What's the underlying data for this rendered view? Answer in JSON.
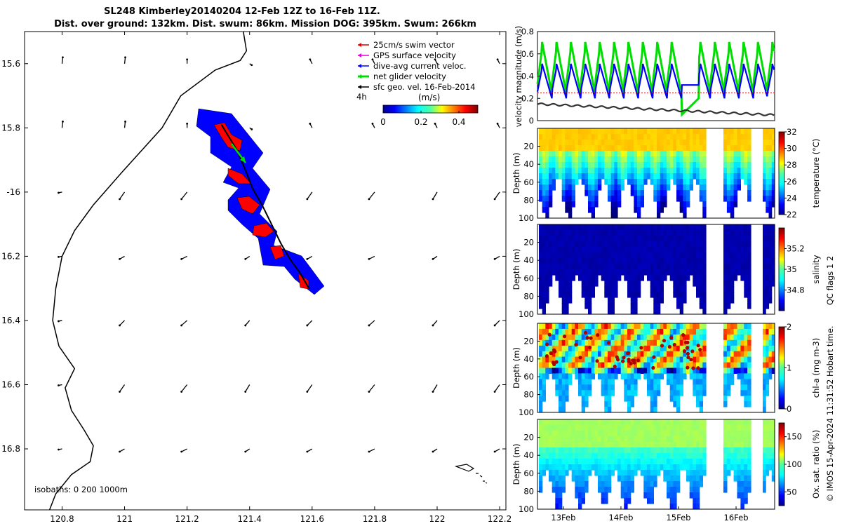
{
  "title": {
    "line1": "SL248 Kimberley20140204 12-Feb 12Z to 16-Feb 11Z.",
    "line2": "Dist. over ground: 132km. Dist. swum: 86km. Mission DOG: 395km. Swum: 266km"
  },
  "colors": {
    "swim": "#e00000",
    "gps": "#e000e0",
    "dive": "#0000ff",
    "net": "#00dd00",
    "sfc": "#000000",
    "track_fill": "#0000ff",
    "red_fill": "#ff0000"
  },
  "map": {
    "legend": [
      {
        "label": "25cm/s swim vector",
        "color": "#e00000"
      },
      {
        "label": "GPS surface velocity",
        "color": "#e000e0"
      },
      {
        "label": "dive-avg current veloc.",
        "color": "#0000ff"
      },
      {
        "label": "net glider velocity",
        "color": "#00dd00"
      },
      {
        "label": "sfc geo. vel. 16-Feb-2014",
        "color": "#000000"
      }
    ],
    "time_step_label": "4h",
    "colorbar": {
      "label": "(m/s)",
      "ticks": [
        "0",
        "0.2",
        "0.4"
      ],
      "range": [
        0,
        0.5
      ]
    },
    "isobaths_label": "isobaths: 0   200  1000m"
  },
  "chart_data": [
    {
      "type": "map",
      "title": "SL248 Kimberley20140204 12-Feb 12Z to 16-Feb 11Z.",
      "xlim": [
        120.68,
        122.22
      ],
      "ylim": [
        -16.99,
        -15.5
      ],
      "x_ticks": [
        120.8,
        121,
        121.2,
        121.4,
        121.6,
        121.8,
        122,
        122.2
      ],
      "x_tick_labels": [
        "120.8",
        "121",
        "121.2",
        "121.4",
        "121.6",
        "121.8",
        "122",
        "122.2"
      ],
      "y_ticks": [
        -15.6,
        -15.8,
        -16,
        -16.2,
        -16.4,
        -16.6,
        -16.8
      ],
      "y_tick_labels": [
        "15.6",
        "15.8",
        "-16",
        "16.2",
        "16.4",
        "16.6",
        "16.8"
      ],
      "coastline": [
        [
          121.38,
          -15.5
        ],
        [
          121.39,
          -15.56
        ],
        [
          121.37,
          -15.59
        ],
        [
          121.29,
          -15.62
        ],
        [
          121.18,
          -15.7
        ],
        [
          121.12,
          -15.8
        ],
        [
          120.99,
          -15.94
        ],
        [
          120.9,
          -16.04
        ],
        [
          120.84,
          -16.12
        ],
        [
          120.8,
          -16.2
        ],
        [
          120.78,
          -16.3
        ],
        [
          120.77,
          -16.4
        ],
        [
          120.79,
          -16.48
        ],
        [
          120.84,
          -16.55
        ],
        [
          120.81,
          -16.61
        ],
        [
          120.83,
          -16.68
        ],
        [
          120.87,
          -16.74
        ],
        [
          120.9,
          -16.79
        ],
        [
          120.89,
          -16.84
        ],
        [
          120.83,
          -16.88
        ],
        [
          120.78,
          -16.94
        ],
        [
          120.76,
          -16.99
        ]
      ],
      "track": [
        [
          121.31,
          -15.79
        ],
        [
          121.36,
          -15.87
        ],
        [
          121.39,
          -15.94
        ],
        [
          121.41,
          -15.99
        ],
        [
          121.44,
          -16.04
        ],
        [
          121.47,
          -16.1
        ],
        [
          121.5,
          -16.16
        ],
        [
          121.53,
          -16.21
        ],
        [
          121.56,
          -16.25
        ],
        [
          121.59,
          -16.3
        ]
      ],
      "sfc_vectors_u": -0.1,
      "sfc_vectors_v": -0.2
    },
    {
      "type": "line",
      "ylabel": "velocity magnitude (m/s)",
      "ylim": [
        0,
        0.8
      ],
      "y_ticks": [
        "0",
        "0.2",
        "0.4",
        "0.6",
        "0.8"
      ],
      "xlim_days": [
        12.55,
        16.67
      ],
      "series": [
        {
          "name": "net glider velocity",
          "color": "#00dd00",
          "base": 0.42,
          "amp": 0.3,
          "period": 0.25
        },
        {
          "name": "dive-avg current veloc.",
          "color": "#0000ff",
          "base": 0.32,
          "amp": 0.2,
          "period": 0.25
        },
        {
          "name": "25cm/s swim vector",
          "color": "#e00000",
          "constant": 0.25
        },
        {
          "name": "sfc geo. vel.",
          "color": "#333333",
          "start": 0.15,
          "end": 0.05
        }
      ]
    },
    {
      "type": "heatmap",
      "variable": "temperature",
      "ylabel": "Depth (m)",
      "clabel": "temperature (°C)",
      "y_ticks": [
        "20",
        "40",
        "60",
        "80",
        "100"
      ],
      "crange": [
        22,
        32
      ],
      "cticks": [
        "22",
        "24",
        "26",
        "28",
        "30",
        "32"
      ]
    },
    {
      "type": "heatmap",
      "variable": "salinity",
      "ylabel": "Depth (m)",
      "clabel": "salinity",
      "y_ticks": [
        "20",
        "40",
        "60",
        "80",
        "100"
      ],
      "crange": [
        34.6,
        35.4
      ],
      "cticks": [
        "34.8",
        "35",
        "35.2"
      ]
    },
    {
      "type": "heatmap",
      "variable": "chl-a",
      "ylabel": "Depth (m)",
      "clabel": "chl-a (mg m-3)",
      "y_ticks": [
        "20",
        "40",
        "60",
        "80",
        "100"
      ],
      "crange": [
        0,
        2
      ],
      "cticks": [
        "0",
        "1",
        "2"
      ]
    },
    {
      "type": "heatmap",
      "variable": "oxygen",
      "ylabel": "Depth (m)",
      "clabel": "Ox. sat. ratio (%)",
      "y_ticks": [
        "20",
        "40",
        "60",
        "80",
        "100"
      ],
      "crange": [
        25,
        175
      ],
      "cticks": [
        "50",
        "100",
        "150"
      ],
      "x_tick_labels": [
        "13Feb",
        "14Feb",
        "15Feb",
        "16Feb"
      ]
    }
  ],
  "qc_label": "QC flags 1  2",
  "credit": "© IMOS 15-Apr-2024 11:31:52 Hobart time."
}
